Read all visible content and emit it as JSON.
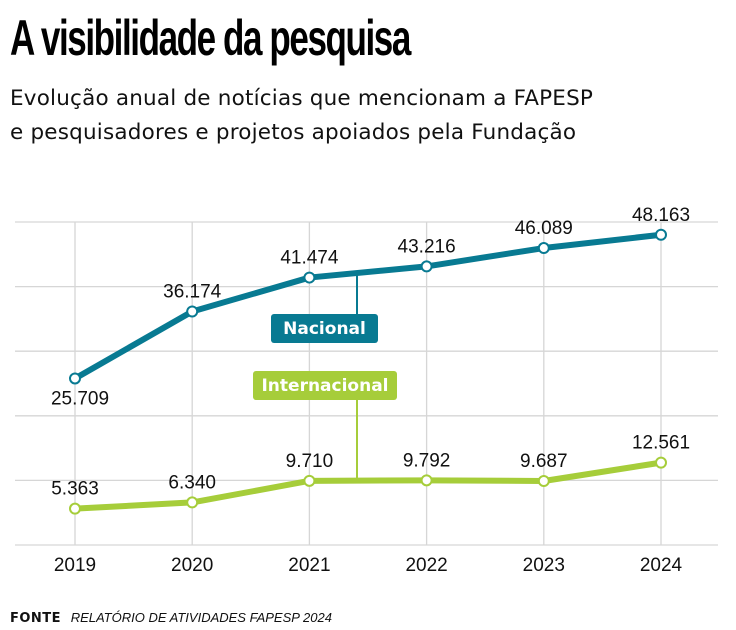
{
  "header": {
    "title": "A visibilidade da pesquisa",
    "subtitle_lines": [
      "Evolução anual de notícias que mencionam a FAPESP",
      "e pesquisadores e projetos apoiados pela Fundação"
    ]
  },
  "footer": {
    "source_label": "FONTE",
    "source_text": "RELATÓRIO DE ATIVIDADES FAPESP 2024"
  },
  "chart_data": {
    "type": "line",
    "title": "A visibilidade da pesquisa",
    "subtitle": "Evolução anual de notícias que mencionam a FAPESP e pesquisadores e projetos apoiados pela Fundação",
    "xlabel": "",
    "ylabel": "",
    "x": [
      "2019",
      "2020",
      "2021",
      "2022",
      "2023",
      "2024"
    ],
    "grid": true,
    "ylim": [
      0,
      50000
    ],
    "series": [
      {
        "name": "Nacional",
        "color": "#087a92",
        "values": [
          25709,
          36174,
          41474,
          43216,
          46089,
          48163
        ],
        "labels": [
          "25.709",
          "36.174",
          "41.474",
          "43.216",
          "46.089",
          "48.163"
        ]
      },
      {
        "name": "Internacional",
        "color": "#a6cd3a",
        "values": [
          5363,
          6340,
          9710,
          9792,
          9687,
          12561
        ],
        "labels": [
          "5.363",
          "6.340",
          "9.710",
          "9.792",
          "9.687",
          "12.561"
        ]
      }
    ],
    "legend": "inline-callouts"
  }
}
